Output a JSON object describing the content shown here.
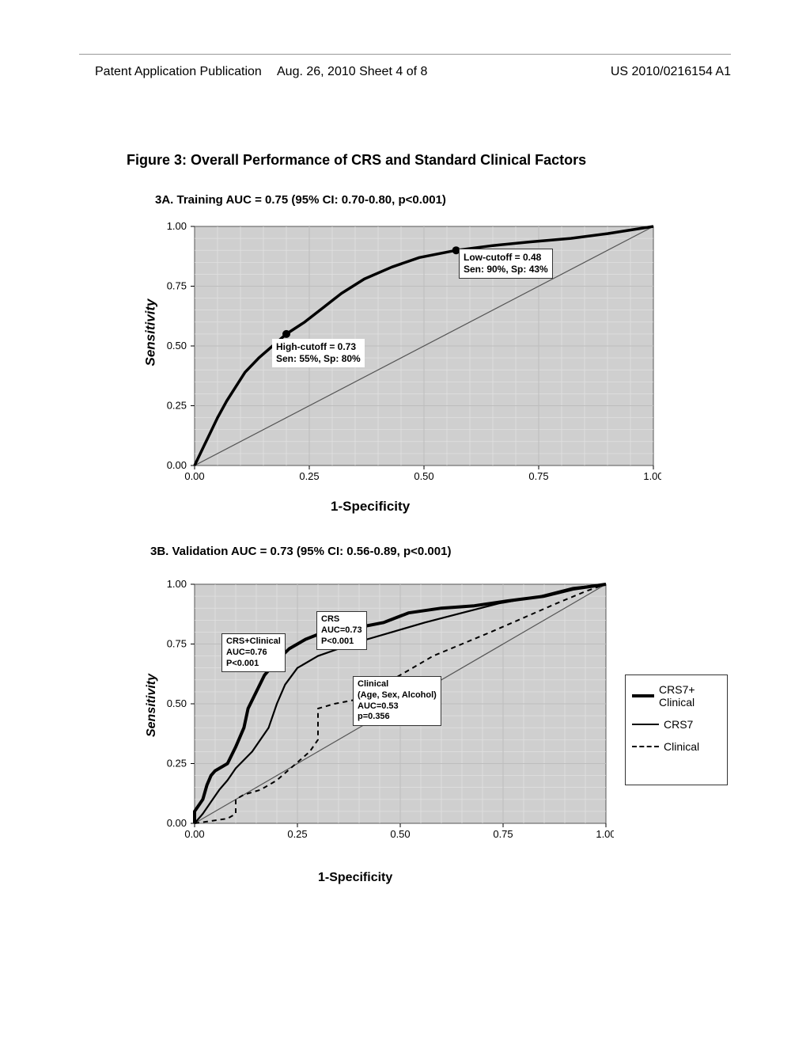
{
  "header": {
    "left": "Patent Application Publication",
    "center": "Aug. 26, 2010  Sheet 4 of 8",
    "right": "US 2010/0216154 A1"
  },
  "figure": {
    "title": "Figure 3: Overall Performance of CRS and Standard Clinical Factors"
  },
  "chartA": {
    "type": "line",
    "caption": "3A. Training AUC = 0.75 (95% CI: 0.70-0.80, p<0.001)",
    "xlabel": "1-Specificity",
    "ylabel": "Sensitivity",
    "xlim": [
      0.0,
      1.0
    ],
    "ylim": [
      0.0,
      1.0
    ],
    "xticks": [
      "0.00",
      "0.25",
      "0.50",
      "0.75",
      "1.00"
    ],
    "yticks": [
      "0.00",
      "0.25",
      "0.50",
      "0.75",
      "1.00"
    ],
    "plot_bg": "#cfcfcf",
    "grid_color": "#e4e4e4",
    "diagonal_color": "#555555",
    "roc_color": "#000000",
    "roc_width": 3.5,
    "roc_points": [
      [
        0.0,
        0.0
      ],
      [
        0.02,
        0.08
      ],
      [
        0.035,
        0.14
      ],
      [
        0.05,
        0.2
      ],
      [
        0.07,
        0.27
      ],
      [
        0.09,
        0.33
      ],
      [
        0.11,
        0.39
      ],
      [
        0.14,
        0.45
      ],
      [
        0.17,
        0.5
      ],
      [
        0.2,
        0.55
      ],
      [
        0.24,
        0.6
      ],
      [
        0.28,
        0.66
      ],
      [
        0.32,
        0.72
      ],
      [
        0.37,
        0.78
      ],
      [
        0.43,
        0.83
      ],
      [
        0.49,
        0.87
      ],
      [
        0.57,
        0.9
      ],
      [
        0.65,
        0.92
      ],
      [
        0.73,
        0.935
      ],
      [
        0.82,
        0.95
      ],
      [
        0.9,
        0.97
      ],
      [
        1.0,
        1.0
      ]
    ],
    "markers": [
      {
        "x": 0.2,
        "y": 0.55,
        "r": 5,
        "color": "#000000"
      },
      {
        "x": 0.57,
        "y": 0.9,
        "r": 5,
        "color": "#000000"
      }
    ],
    "annot_high": {
      "line1": "High-cutoff = 0.73",
      "line2": "Sen: 55%, Sp: 80%"
    },
    "annot_low": {
      "line1": "Low-cutoff = 0.48",
      "line2": "Sen: 90%, Sp: 43%"
    }
  },
  "chartB": {
    "type": "line",
    "caption": "3B. Validation AUC = 0.73 (95% CI: 0.56-0.89, p<0.001)",
    "xlabel": "1-Specificity",
    "ylabel": "Sensitivity",
    "xlim": [
      0.0,
      1.0
    ],
    "ylim": [
      0.0,
      1.0
    ],
    "xticks": [
      "0.00",
      "0.25",
      "0.50",
      "0.75",
      "1.00"
    ],
    "yticks": [
      "0.00",
      "0.25",
      "0.50",
      "0.75",
      "1.00"
    ],
    "plot_bg": "#cfcfcf",
    "grid_color": "#e4e4e4",
    "diagonal_color": "#555555",
    "series": {
      "crs7_clinical": {
        "color": "#000000",
        "width": 4.0,
        "dash": "",
        "points": [
          [
            0.0,
            0.0
          ],
          [
            0.0,
            0.05
          ],
          [
            0.02,
            0.1
          ],
          [
            0.03,
            0.16
          ],
          [
            0.04,
            0.2
          ],
          [
            0.05,
            0.22
          ],
          [
            0.08,
            0.25
          ],
          [
            0.1,
            0.32
          ],
          [
            0.12,
            0.4
          ],
          [
            0.13,
            0.48
          ],
          [
            0.15,
            0.55
          ],
          [
            0.17,
            0.62
          ],
          [
            0.2,
            0.68
          ],
          [
            0.23,
            0.73
          ],
          [
            0.27,
            0.77
          ],
          [
            0.3,
            0.79
          ],
          [
            0.35,
            0.8
          ],
          [
            0.4,
            0.82
          ],
          [
            0.46,
            0.84
          ],
          [
            0.52,
            0.88
          ],
          [
            0.6,
            0.9
          ],
          [
            0.68,
            0.91
          ],
          [
            0.76,
            0.93
          ],
          [
            0.85,
            0.95
          ],
          [
            0.92,
            0.98
          ],
          [
            1.0,
            1.0
          ]
        ]
      },
      "crs7": {
        "color": "#000000",
        "width": 2.2,
        "dash": "",
        "points": [
          [
            0.0,
            0.0
          ],
          [
            0.02,
            0.04
          ],
          [
            0.04,
            0.09
          ],
          [
            0.06,
            0.14
          ],
          [
            0.08,
            0.18
          ],
          [
            0.1,
            0.23
          ],
          [
            0.14,
            0.3
          ],
          [
            0.18,
            0.4
          ],
          [
            0.2,
            0.5
          ],
          [
            0.22,
            0.58
          ],
          [
            0.25,
            0.65
          ],
          [
            0.3,
            0.7
          ],
          [
            0.35,
            0.73
          ],
          [
            0.4,
            0.76
          ],
          [
            0.48,
            0.8
          ],
          [
            0.56,
            0.84
          ],
          [
            0.65,
            0.88
          ],
          [
            0.74,
            0.92
          ],
          [
            0.84,
            0.95
          ],
          [
            0.92,
            0.985
          ],
          [
            1.0,
            1.0
          ]
        ]
      },
      "clinical": {
        "color": "#000000",
        "width": 2.0,
        "dash": "6,5",
        "points": [
          [
            0.0,
            0.0
          ],
          [
            0.04,
            0.01
          ],
          [
            0.08,
            0.02
          ],
          [
            0.1,
            0.04
          ],
          [
            0.1,
            0.1
          ],
          [
            0.12,
            0.12
          ],
          [
            0.16,
            0.14
          ],
          [
            0.2,
            0.18
          ],
          [
            0.24,
            0.24
          ],
          [
            0.28,
            0.3
          ],
          [
            0.3,
            0.35
          ],
          [
            0.3,
            0.48
          ],
          [
            0.34,
            0.5
          ],
          [
            0.4,
            0.52
          ],
          [
            0.46,
            0.58
          ],
          [
            0.52,
            0.64
          ],
          [
            0.58,
            0.7
          ],
          [
            0.65,
            0.75
          ],
          [
            0.72,
            0.8
          ],
          [
            0.8,
            0.86
          ],
          [
            0.88,
            0.92
          ],
          [
            0.95,
            0.97
          ],
          [
            1.0,
            1.0
          ]
        ]
      }
    },
    "annot_crs": {
      "l1": "CRS",
      "l2": "AUC=0.73",
      "l3": "P<0.001"
    },
    "annot_crscl": {
      "l1": "CRS+Clinical",
      "l2": "AUC=0.76",
      "l3": "P<0.001"
    },
    "annot_cl": {
      "l1": "Clinical",
      "l2": "(Age, Sex, Alcohol)",
      "l3": "AUC=0.53",
      "l4": "p=0.356"
    },
    "legend": {
      "items": [
        {
          "label": "CRS7+ Clinical",
          "style": "solid-thick"
        },
        {
          "label": "CRS7",
          "style": "solid-thin"
        },
        {
          "label": "Clinical",
          "style": "dashed"
        }
      ]
    }
  }
}
